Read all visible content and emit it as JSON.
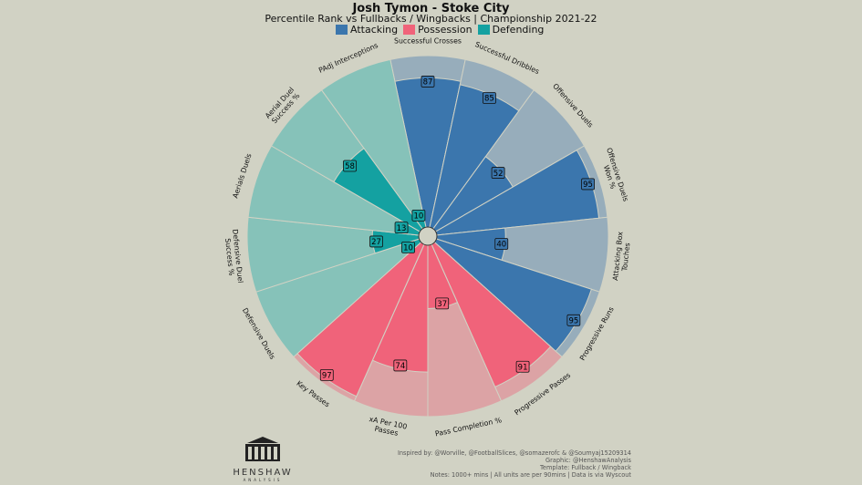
{
  "header": {
    "title": "Josh Tymon - Stoke City",
    "subtitle": "Percentile Rank vs Fullbacks / Wingbacks | Championship 2021-22"
  },
  "legend": [
    {
      "label": "Attacking",
      "color": "#3b76ad"
    },
    {
      "label": "Possession",
      "color": "#f0637a"
    },
    {
      "label": "Defending",
      "color": "#14a1a1"
    }
  ],
  "chart_data": {
    "type": "pie",
    "subtype": "polar-area percentile radar",
    "rlim": [
      0,
      100
    ],
    "categories": [
      "Successful Crosses",
      "Successful Dribbles",
      "Offensive Duels",
      "Offensive Duels Won %",
      "Attacking Box Touches",
      "Progressive Runs",
      "Progressive Passes",
      "Pass Completion %",
      "xA Per 100 Passes",
      "Key Passes",
      "Defensive Duels",
      "Defensive Duel Success %",
      "Aerials Duels",
      "Aerial Duel Success %",
      "PAdj Interceptions"
    ],
    "label_lines": [
      [
        "Successful Crosses"
      ],
      [
        "Successful Dribbles"
      ],
      [
        "Offensive Duels"
      ],
      [
        "Offensive Duels",
        "Won %"
      ],
      [
        "Attacking Box",
        "Touches"
      ],
      [
        "Progressive Runs"
      ],
      [
        "Progressive Passes"
      ],
      [
        "Pass Completion %"
      ],
      [
        "xA Per 100",
        "Passes"
      ],
      [
        "Key Passes"
      ],
      [
        "Defensive Duels"
      ],
      [
        "Defensive Duel",
        "Success %"
      ],
      [
        "Aerials Duels"
      ],
      [
        "Aerial Duel",
        "Success %"
      ],
      [
        "PAdj Interceptions"
      ]
    ],
    "values": [
      87,
      85,
      52,
      95,
      40,
      95,
      91,
      37,
      74,
      97,
      10,
      27,
      13,
      58,
      10
    ],
    "groups": [
      "Attacking",
      "Attacking",
      "Attacking",
      "Attacking",
      "Attacking",
      "Attacking",
      "Possession",
      "Possession",
      "Possession",
      "Possession",
      "Defending",
      "Defending",
      "Defending",
      "Defending",
      "Defending"
    ],
    "group_colors": {
      "Attacking": "#3b76ad",
      "Possession": "#f0637a",
      "Defending": "#14a1a1"
    },
    "background_colors": {
      "Attacking": "#97adbb",
      "Possession": "#dca3a5",
      "Defending": "#86c2b9"
    }
  },
  "logo": {
    "name": "HENSHAW",
    "sub": "ANALYSIS"
  },
  "credits": [
    "Inspired by: @Worville, @FootballSlices, @somazerofc & @Soumyaj15209314",
    "Graphic: @HenshawAnalysis",
    "Template: Fullback / Wingback",
    "Notes: 1000+ mins | All units are per 90mins | Data is via Wyscout"
  ]
}
